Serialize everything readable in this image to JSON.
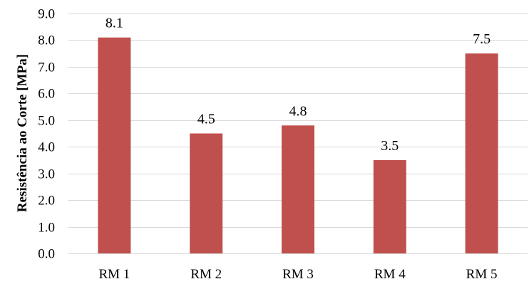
{
  "chart_data": {
    "type": "bar",
    "title": "",
    "xlabel": "",
    "ylabel": "Resistência ao Corte [MPa]",
    "categories": [
      "RM 1",
      "RM 2",
      "RM 3",
      "RM 4",
      "RM 5"
    ],
    "values": [
      8.1,
      4.5,
      4.8,
      3.5,
      7.5
    ],
    "data_labels": [
      "8.1",
      "4.5",
      "4.8",
      "3.5",
      "7.5"
    ],
    "ylim": [
      0,
      9
    ],
    "yticks": [
      "0.0",
      "1.0",
      "2.0",
      "3.0",
      "4.0",
      "5.0",
      "6.0",
      "7.0",
      "8.0",
      "9.0"
    ],
    "grid": true,
    "legend": "none",
    "bar_color": "#c0504d",
    "grid_color": "#d9d9d9"
  }
}
